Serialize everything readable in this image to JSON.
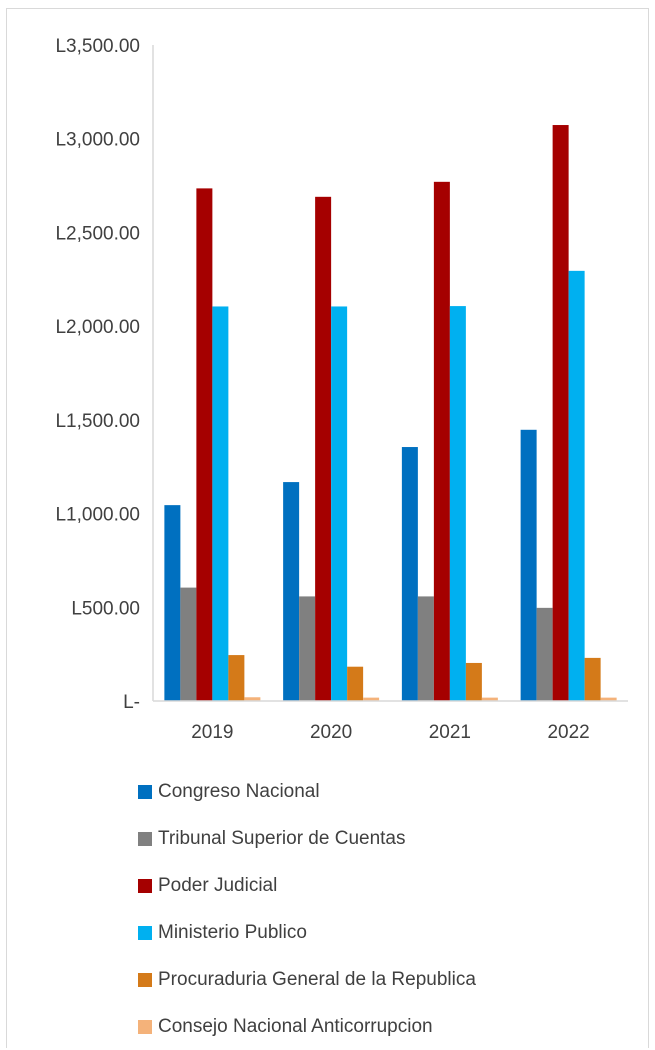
{
  "chart_data": {
    "type": "bar",
    "categories": [
      "2019",
      "2020",
      "2021",
      "2022"
    ],
    "series": [
      {
        "name": "Congreso Nacional",
        "color": "#0070c0",
        "values": [
          1045,
          1168,
          1355,
          1447
        ]
      },
      {
        "name": "Tribunal Superior de Cuentas",
        "color": "#808080",
        "values": [
          605,
          558,
          558,
          497
        ]
      },
      {
        "name": "Poder Judicial",
        "color": "#a50000",
        "values": [
          2735,
          2690,
          2770,
          3073
        ]
      },
      {
        "name": "Ministerio Publico",
        "color": "#00b0f0",
        "values": [
          2105,
          2105,
          2107,
          2295
        ]
      },
      {
        "name": "Procuraduria General de la Republica",
        "color": "#d47a19",
        "values": [
          245,
          183,
          203,
          230
        ]
      },
      {
        "name": "Consejo Nacional Anticorrupcion",
        "color": "#f4b27a",
        "values": [
          20,
          18,
          18,
          18
        ]
      }
    ],
    "ylim": [
      0,
      3500
    ],
    "yticks": [
      {
        "value": 0,
        "label": "L-"
      },
      {
        "value": 500,
        "label": "L500.00"
      },
      {
        "value": 1000,
        "label": "L1,000.00"
      },
      {
        "value": 1500,
        "label": "L1,500.00"
      },
      {
        "value": 2000,
        "label": "L2,000.00"
      },
      {
        "value": 2500,
        "label": "L2,500.00"
      },
      {
        "value": 3000,
        "label": "L3,000.00"
      },
      {
        "value": 3500,
        "label": "L3,500.00"
      }
    ],
    "title": "",
    "xlabel": "",
    "ylabel": "",
    "grid": false,
    "legend_position": "bottom"
  }
}
